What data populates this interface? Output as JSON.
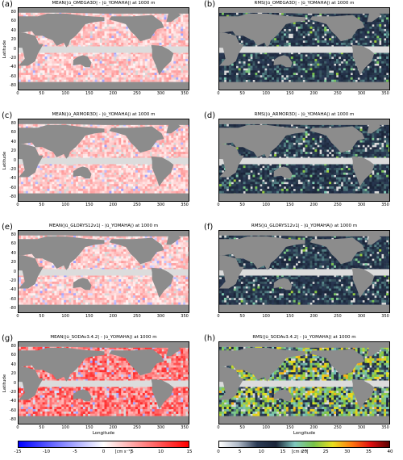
{
  "chart_data": [
    {
      "type": "heatmap",
      "panel": "(a)",
      "title": "MEAN(|ũ_OMEGA3D| - |ũ_YOMAHA|) at 1000 m",
      "ylabel": "Latitude",
      "kind": "mean",
      "colormap": "bwr",
      "clim": [
        -15,
        15
      ]
    },
    {
      "type": "heatmap",
      "panel": "(b)",
      "title": "RMS(|ũ_OMEGA3D| - |ũ_YOMAHA|) at 1000 m",
      "kind": "rms",
      "colormap": "rms",
      "clim": [
        0,
        40
      ]
    },
    {
      "type": "heatmap",
      "panel": "(c)",
      "title": "MEAN(|ũ_ARMOR3D| - |ũ_YOMAHA|) at 1000 m",
      "ylabel": "Latitude",
      "kind": "mean",
      "colormap": "bwr",
      "clim": [
        -15,
        15
      ]
    },
    {
      "type": "heatmap",
      "panel": "(d)",
      "title": "RMS(|ũ_ARMOR3D| - |ũ_YOMAHA|) at 1000 m",
      "kind": "rms",
      "colormap": "rms",
      "clim": [
        0,
        40
      ]
    },
    {
      "type": "heatmap",
      "panel": "(e)",
      "title": "MEAN(|ũ_GLORYS12v1| - |ũ_YOMAHA|) at 1000 m",
      "kind": "mean",
      "colormap": "bwr",
      "clim": [
        -15,
        15
      ]
    },
    {
      "type": "heatmap",
      "panel": "(f)",
      "title": "RMS(|ũ_GLORYS12v1| - |ũ_YOMAHA|) at 1000 m",
      "kind": "rms",
      "colormap": "rms",
      "clim": [
        0,
        40
      ]
    },
    {
      "type": "heatmap",
      "panel": "(g)",
      "title": "MEAN(|ũ_SODAv3.4.2| - |ũ_YOMAHA|) at 1000 m",
      "ylabel": "Latitude",
      "xlabel": "Longitude",
      "kind": "mean",
      "colormap": "bwr",
      "clim": [
        -15,
        15
      ]
    },
    {
      "type": "heatmap",
      "panel": "(h)",
      "title": "RMS(|ũ_SODAv3.4.2| - |ũ_YOMAHA|) at 1000 m",
      "xlabel": "Longitude",
      "kind": "rms",
      "colormap": "rms",
      "clim": [
        0,
        40
      ]
    }
  ],
  "axes": {
    "lat_ticks": [
      "80",
      "60",
      "40",
      "20",
      "0",
      "-20",
      "-40",
      "-60",
      "-80"
    ],
    "lon_ticks": [
      "0",
      "50",
      "100",
      "150",
      "200",
      "250",
      "300",
      "350"
    ],
    "xlim": [
      0,
      360
    ],
    "ylim": [
      -90,
      90
    ]
  },
  "colorbars": {
    "mean": {
      "ticks": [
        "-15",
        "-10",
        "-5",
        "0",
        "5",
        "10",
        "15"
      ],
      "unit": "[cm s⁻¹]",
      "colors": [
        "#0000ff",
        "#ffffff",
        "#ff0000"
      ]
    },
    "rms": {
      "ticks": [
        "0",
        "5",
        "10",
        "15",
        "20",
        "25",
        "30",
        "35",
        "40"
      ],
      "unit": "[cm s⁻¹]",
      "colors": [
        "#ffffff",
        "#b0bac8",
        "#2b3b55",
        "#1a2438",
        "#7fc8c0",
        "#78c34a",
        "#e8e020",
        "#ff7a10",
        "#e01010",
        "#5a0000"
      ]
    }
  },
  "colors": {
    "land": "#8c8c8c",
    "ocean_nodata": "#d8d8d8",
    "equator_band": "#dcdcdc"
  }
}
